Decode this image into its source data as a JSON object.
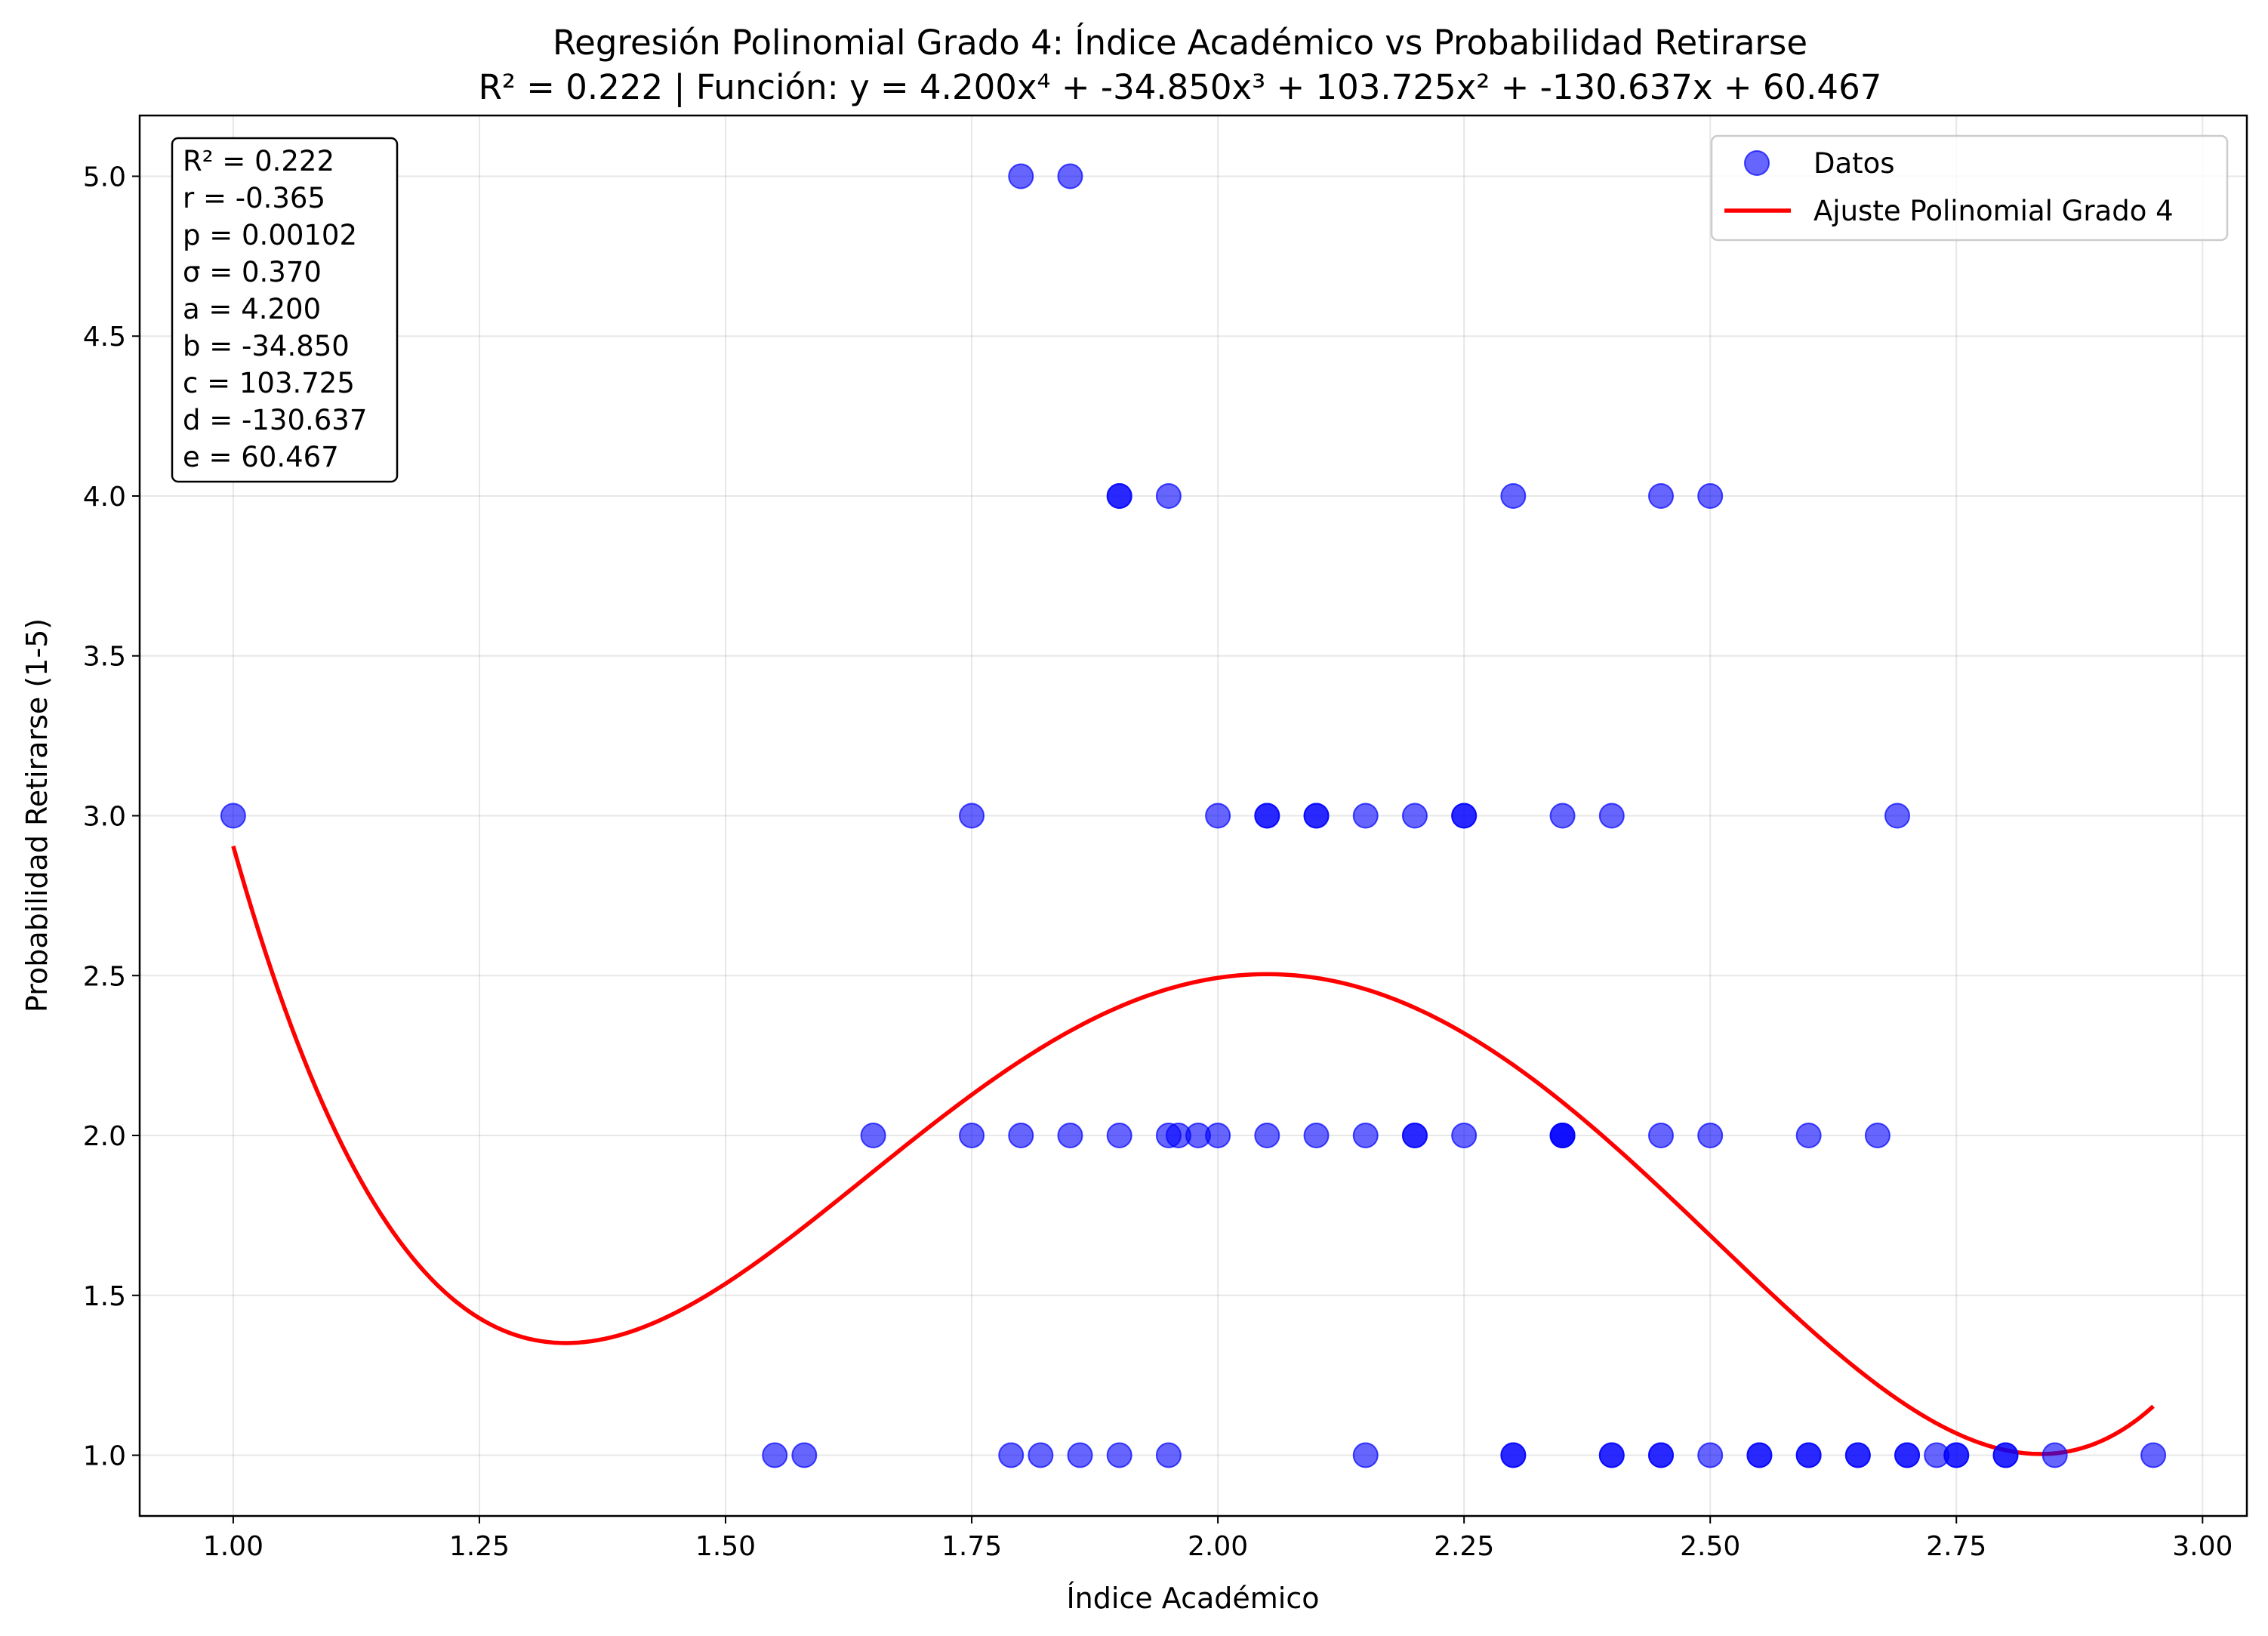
{
  "chart_data": {
    "type": "scatter",
    "title": "Regresión Polinomial Grado 4: Índice Académico vs Probabilidad Retirarse",
    "subtitle": "R² = 0.222 | Función: y = 4.200x⁴ + -34.850x³ + 103.725x² + -130.637x + 60.467",
    "xlabel": "Índice Académico",
    "ylabel": "Probabilidad Retirarse (1-5)",
    "xlim": [
      0.905,
      3.045
    ],
    "ylim": [
      0.81,
      5.19
    ],
    "xticks": [
      1.0,
      1.25,
      1.5,
      1.75,
      2.0,
      2.25,
      2.5,
      2.75,
      3.0
    ],
    "xtick_labels": [
      "1.00",
      "1.25",
      "1.50",
      "1.75",
      "2.00",
      "2.25",
      "2.50",
      "2.75",
      "3.00"
    ],
    "yticks": [
      1.0,
      1.5,
      2.0,
      2.5,
      3.0,
      3.5,
      4.0,
      4.5,
      5.0
    ],
    "ytick_labels": [
      "1.0",
      "1.5",
      "2.0",
      "2.5",
      "3.0",
      "3.5",
      "4.0",
      "4.5",
      "5.0"
    ],
    "grid": true,
    "legend_position": "top-right",
    "stats_box": [
      "R² = 0.222",
      "r = -0.365",
      "p = 0.00102",
      "σ = 0.370",
      "a = 4.200",
      "b = -34.850",
      "c = 103.725",
      "d = -130.637",
      "e = 60.467"
    ],
    "series": [
      {
        "name": "Datos",
        "type": "scatter",
        "color": "#0000ff",
        "opacity": 0.6,
        "points": [
          [
            1.8,
            5.0
          ],
          [
            1.85,
            5.0
          ],
          [
            1.9,
            4.0
          ],
          [
            1.9,
            4.0
          ],
          [
            1.95,
            4.0
          ],
          [
            2.3,
            4.0
          ],
          [
            2.45,
            4.0
          ],
          [
            2.5,
            4.0
          ],
          [
            1.0,
            3.0
          ],
          [
            1.75,
            3.0
          ],
          [
            2.0,
            3.0
          ],
          [
            2.05,
            3.0
          ],
          [
            2.05,
            3.0
          ],
          [
            2.1,
            3.0
          ],
          [
            2.1,
            3.0
          ],
          [
            2.15,
            3.0
          ],
          [
            2.2,
            3.0
          ],
          [
            2.25,
            3.0
          ],
          [
            2.25,
            3.0
          ],
          [
            2.35,
            3.0
          ],
          [
            2.4,
            3.0
          ],
          [
            2.69,
            3.0
          ],
          [
            1.65,
            2.0
          ],
          [
            1.75,
            2.0
          ],
          [
            1.8,
            2.0
          ],
          [
            1.85,
            2.0
          ],
          [
            1.9,
            2.0
          ],
          [
            1.95,
            2.0
          ],
          [
            1.96,
            2.0
          ],
          [
            1.98,
            2.0
          ],
          [
            2.0,
            2.0
          ],
          [
            2.05,
            2.0
          ],
          [
            2.1,
            2.0
          ],
          [
            2.15,
            2.0
          ],
          [
            2.2,
            2.0
          ],
          [
            2.2,
            2.0
          ],
          [
            2.25,
            2.0
          ],
          [
            2.35,
            2.0
          ],
          [
            2.35,
            2.0
          ],
          [
            2.35,
            2.0
          ],
          [
            2.45,
            2.0
          ],
          [
            2.5,
            2.0
          ],
          [
            2.6,
            2.0
          ],
          [
            2.67,
            2.0
          ],
          [
            1.55,
            1.0
          ],
          [
            1.58,
            1.0
          ],
          [
            1.79,
            1.0
          ],
          [
            1.82,
            1.0
          ],
          [
            1.86,
            1.0
          ],
          [
            1.9,
            1.0
          ],
          [
            1.95,
            1.0
          ],
          [
            2.15,
            1.0
          ],
          [
            2.3,
            1.0
          ],
          [
            2.3,
            1.0
          ],
          [
            2.4,
            1.0
          ],
          [
            2.4,
            1.0
          ],
          [
            2.45,
            1.0
          ],
          [
            2.45,
            1.0
          ],
          [
            2.5,
            1.0
          ],
          [
            2.55,
            1.0
          ],
          [
            2.55,
            1.0
          ],
          [
            2.6,
            1.0
          ],
          [
            2.6,
            1.0
          ],
          [
            2.65,
            1.0
          ],
          [
            2.65,
            1.0
          ],
          [
            2.7,
            1.0
          ],
          [
            2.7,
            1.0
          ],
          [
            2.73,
            1.0
          ],
          [
            2.75,
            1.0
          ],
          [
            2.75,
            1.0
          ],
          [
            2.8,
            1.0
          ],
          [
            2.8,
            1.0
          ],
          [
            2.85,
            1.0
          ],
          [
            2.95,
            1.0
          ]
        ]
      },
      {
        "name": "Ajuste Polinomial Grado 4",
        "type": "line",
        "color": "#ff0000",
        "coefficients": [
          4.2,
          -34.85,
          103.725,
          -130.637,
          60.467
        ],
        "x_range": [
          1.0,
          2.95
        ]
      }
    ]
  }
}
